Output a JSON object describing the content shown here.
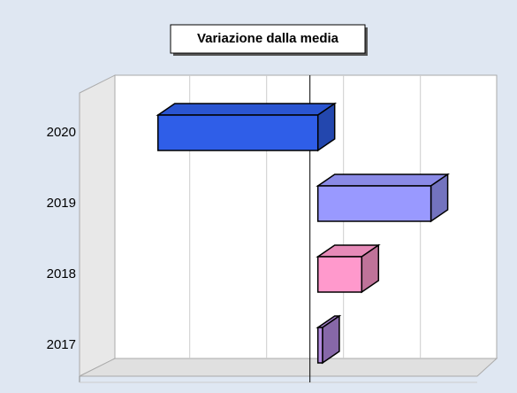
{
  "chart_data": {
    "type": "bar3d_horizontal",
    "title": "Variazione dalla media",
    "categories": [
      "2017",
      "2018",
      "2019",
      "2020"
    ],
    "series": [
      {
        "name": "Variazione",
        "values": [
          0.06,
          0.57,
          1.47,
          -2.08
        ]
      }
    ],
    "colors": [
      "#b48be0",
      "#ff99cc",
      "#9999ff",
      "#2f5ee8"
    ],
    "xlim": [
      -3.1,
      1.9
    ],
    "xticks": [
      -2,
      -1,
      0,
      1
    ],
    "grid": true
  }
}
